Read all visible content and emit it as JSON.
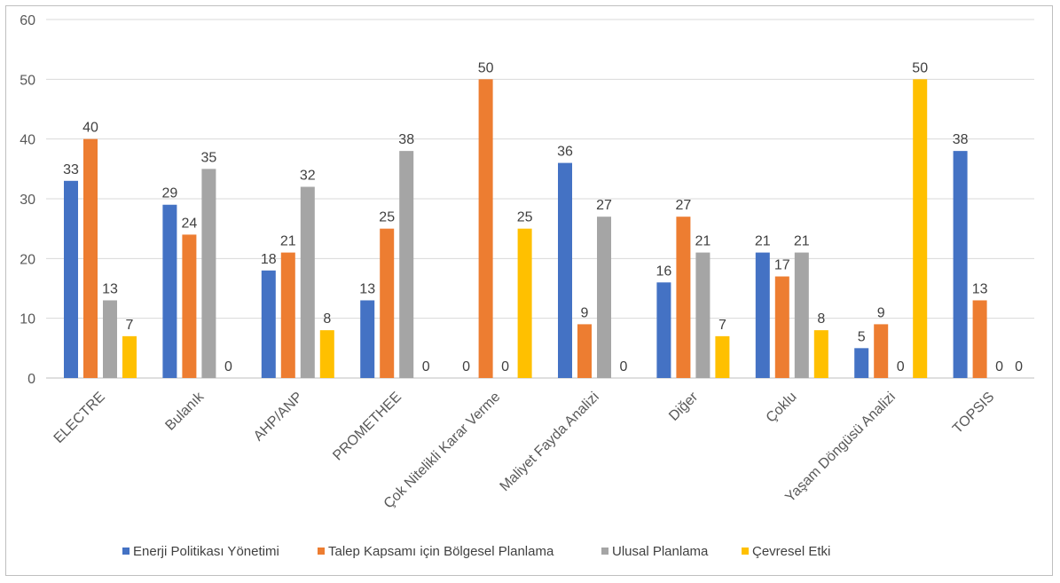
{
  "chart_data": {
    "type": "bar",
    "categories": [
      "ELECTRE",
      "Bulanık",
      "AHP/ANP",
      "PROMETHEE",
      "Çok Nitelikli Karar Verme",
      "Maliyet Fayda Analizi",
      "Diğer",
      "Çoklu",
      "Yaşam Döngüsü Analizi",
      "TOPSIS"
    ],
    "series": [
      {
        "name": "Enerji Politikası Yönetimi",
        "color": "#4472C4",
        "values": [
          33,
          29,
          18,
          13,
          0,
          36,
          16,
          21,
          5,
          38
        ]
      },
      {
        "name": "Talep Kapsamı için Bölgesel Planlama",
        "color": "#ED7D31",
        "values": [
          40,
          24,
          21,
          25,
          50,
          9,
          27,
          17,
          9,
          13
        ]
      },
      {
        "name": "Ulusal Planlama",
        "color": "#A5A5A5",
        "values": [
          13,
          35,
          32,
          38,
          0,
          27,
          21,
          21,
          0,
          0
        ]
      },
      {
        "name": "Çevresel Etki",
        "color": "#FFC000",
        "values": [
          7,
          0,
          8,
          0,
          25,
          0,
          7,
          8,
          50,
          0
        ]
      }
    ],
    "yticks": [
      0,
      10,
      20,
      30,
      40,
      50,
      60
    ],
    "ylim": [
      0,
      60
    ],
    "grid": true,
    "legend_position": "bottom",
    "data_labels": true
  }
}
